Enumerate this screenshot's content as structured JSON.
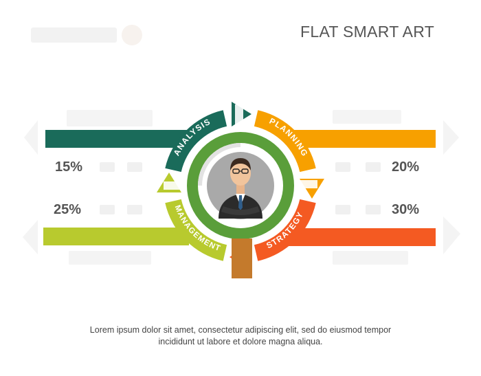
{
  "title": "FLAT SMART ART",
  "segments": {
    "analysis": {
      "label": "ANALYSIS",
      "color": "#1a6b5a"
    },
    "planning": {
      "label": "PLANNING",
      "color": "#f7a000"
    },
    "strategy": {
      "label": "STRATEGY",
      "color": "#f45a22"
    },
    "management": {
      "label": "MANAGEMENT",
      "color": "#b8ca2e"
    }
  },
  "percentages": {
    "top_left": "15%",
    "bottom_left": "25%",
    "top_right": "20%",
    "bottom_right": "30%"
  },
  "caption": {
    "line1": "Lorem ipsum dolor sit amet, consectetur adipiscing elit, sed do eiusmod tempor",
    "line2": "incididunt ut labore et dolore magna aliqua."
  },
  "center_icon": "businessman-avatar-icon",
  "inner_ring_color": "#5a9e3a",
  "accent_block_color": "#c47a2c"
}
